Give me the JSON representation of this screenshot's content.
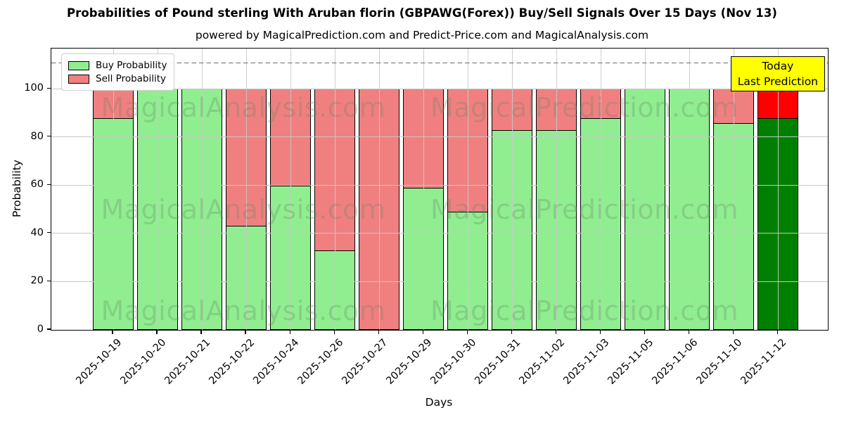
{
  "header": {
    "title": "Probabilities of Pound sterling With Aruban florin (GBPAWG(Forex)) Buy/Sell Signals Over 15 Days (Nov 13)",
    "subtitle": "powered by MagicalPrediction.com and Predict-Price.com and MagicalAnalysis.com"
  },
  "axes": {
    "xlabel": "Days",
    "ylabel": "Probability",
    "yticks": [
      0,
      20,
      40,
      60,
      80,
      100
    ]
  },
  "legend": {
    "items": [
      {
        "label": "Buy Probability",
        "color": "#90ee90"
      },
      {
        "label": "Sell Probability",
        "color": "#f08080"
      }
    ]
  },
  "annotation": {
    "line1": "Today",
    "line2": "Last Prediction",
    "bg": "#ffff00"
  },
  "watermarks": {
    "left": "MagicalAnalysis.com",
    "right": "MagicalPrediction.com"
  },
  "chart_data": {
    "type": "bar",
    "stacked": true,
    "title": "Probabilities of Pound sterling With Aruban florin (GBPAWG(Forex)) Buy/Sell Signals Over 15 Days (Nov 13)",
    "subtitle": "powered by MagicalPrediction.com and Predict-Price.com and MagicalAnalysis.com",
    "xlabel": "Days",
    "ylabel": "Probability",
    "ylim": [
      0,
      117
    ],
    "grid": true,
    "legend_position": "upper left",
    "categories": [
      "2025-10-19",
      "2025-10-20",
      "2025-10-21",
      "2025-10-22",
      "2025-10-24",
      "2025-10-26",
      "2025-10-27",
      "2025-10-29",
      "2025-10-30",
      "2025-10-31",
      "2025-11-02",
      "2025-11-03",
      "2025-11-05",
      "2025-11-06",
      "2025-11-10",
      "2025-11-12"
    ],
    "series": [
      {
        "name": "Buy Probability",
        "color": "#90ee90",
        "values": [
          88,
          100,
          100,
          43,
          60,
          33,
          0,
          59,
          49,
          83,
          83,
          88,
          100,
          100,
          86,
          88
        ]
      },
      {
        "name": "Sell Probability",
        "color": "#f08080",
        "values": [
          12,
          0,
          0,
          57,
          40,
          67,
          100,
          41,
          51,
          17,
          17,
          12,
          0,
          0,
          14,
          12
        ]
      }
    ],
    "today_bar": {
      "index": 15,
      "buy_color": "#008000",
      "sell_color": "#ff0000"
    },
    "dashed_line_y": 110.7
  }
}
